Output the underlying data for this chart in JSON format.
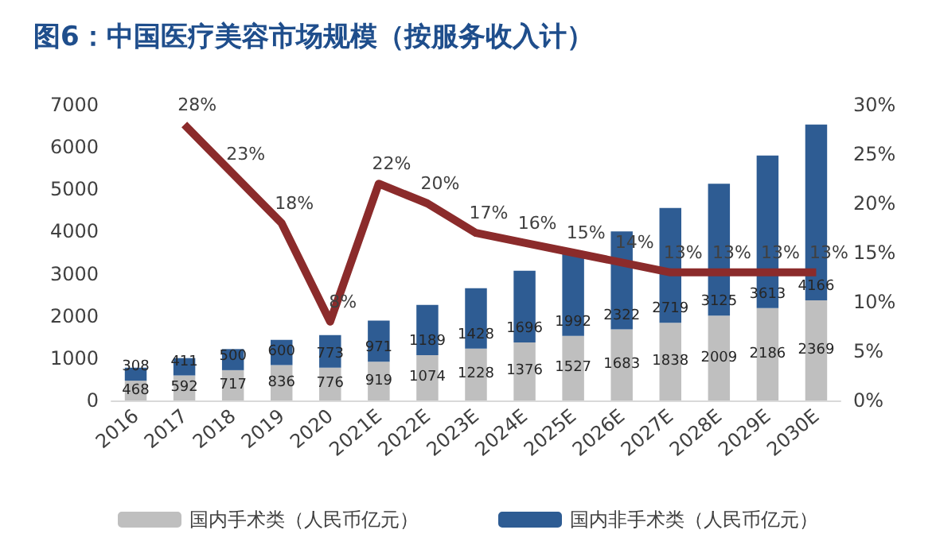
{
  "chart_data": {
    "type": "bar",
    "title": "图6：中国医疗美容市场规模（按服务收入计）",
    "stacked": true,
    "data_labels": true,
    "legend": "bottom",
    "grid": false,
    "categories": [
      "2016",
      "2017",
      "2018",
      "2019",
      "2020",
      "2021E",
      "2022E",
      "2023E",
      "2024E",
      "2025E",
      "2026E",
      "2027E",
      "2028E",
      "2029E",
      "2030E"
    ],
    "ylim": [
      0,
      7000
    ],
    "yticks": [
      0,
      1000,
      2000,
      3000,
      4000,
      5000,
      6000,
      7000
    ],
    "y2lim": [
      0,
      30
    ],
    "y2ticks": [
      {
        "value": 0,
        "label": "0%"
      },
      {
        "value": 5,
        "label": "5%"
      },
      {
        "value": 10,
        "label": "10%"
      },
      {
        "value": 15,
        "label": "15%"
      },
      {
        "value": 20,
        "label": "20%"
      },
      {
        "value": 25,
        "label": "25%"
      },
      {
        "value": 30,
        "label": "30%"
      }
    ],
    "series": [
      {
        "name": "国内手术类（人民币亿元）",
        "color": "#bfbfbf",
        "values": [
          468,
          592,
          717,
          836,
          776,
          919,
          1074,
          1228,
          1376,
          1527,
          1683,
          1838,
          2009,
          2186,
          2369
        ]
      },
      {
        "name": "国内非手术类（人民币亿元）",
        "color": "#2e5c93",
        "values": [
          308,
          411,
          500,
          600,
          773,
          971,
          1189,
          1428,
          1696,
          1992,
          2322,
          2719,
          3125,
          3613,
          4166
        ]
      },
      {
        "type": "line",
        "axis": "y2",
        "color": "#8b2b2b",
        "values": [
          null,
          28,
          23,
          18,
          8,
          22,
          20,
          17,
          16,
          15,
          14,
          13,
          13,
          13,
          13
        ],
        "value_labels": [
          null,
          "28%",
          "23%",
          "18%",
          "8%",
          "22%",
          "20%",
          "17%",
          "16%",
          "15%",
          "14%",
          "13%",
          "13%",
          "13%",
          "13%"
        ]
      }
    ]
  }
}
